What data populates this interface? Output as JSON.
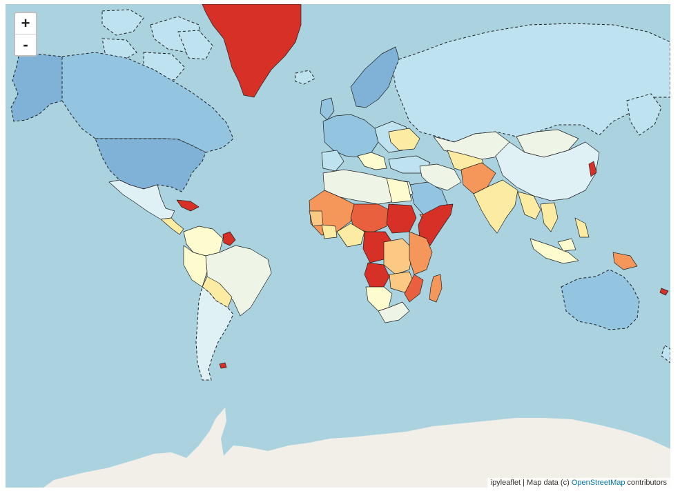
{
  "map": {
    "zoom_in_label": "+",
    "zoom_out_label": "-",
    "attribution_prefix": "ipyleaflet | Map data (c) ",
    "attribution_link": "OpenStreetMap",
    "attribution_suffix": " contributors"
  },
  "choropleth_palette": {
    "darkest_blue": "#7fb2d6",
    "mid_blue": "#93c4e0",
    "light_blue": "#bee2ef",
    "pale_cyan": "#e0f1f6",
    "pale_green": "#eef5e6",
    "pale_yellow": "#fcfccf",
    "yellow": "#fbeba3",
    "light_orange": "#fbc983",
    "orange": "#f5975a",
    "red_orange": "#e8603d",
    "red": "#d73027"
  },
  "base_colors": {
    "ocean": "#aad3df",
    "land": "#f2efe9"
  }
}
